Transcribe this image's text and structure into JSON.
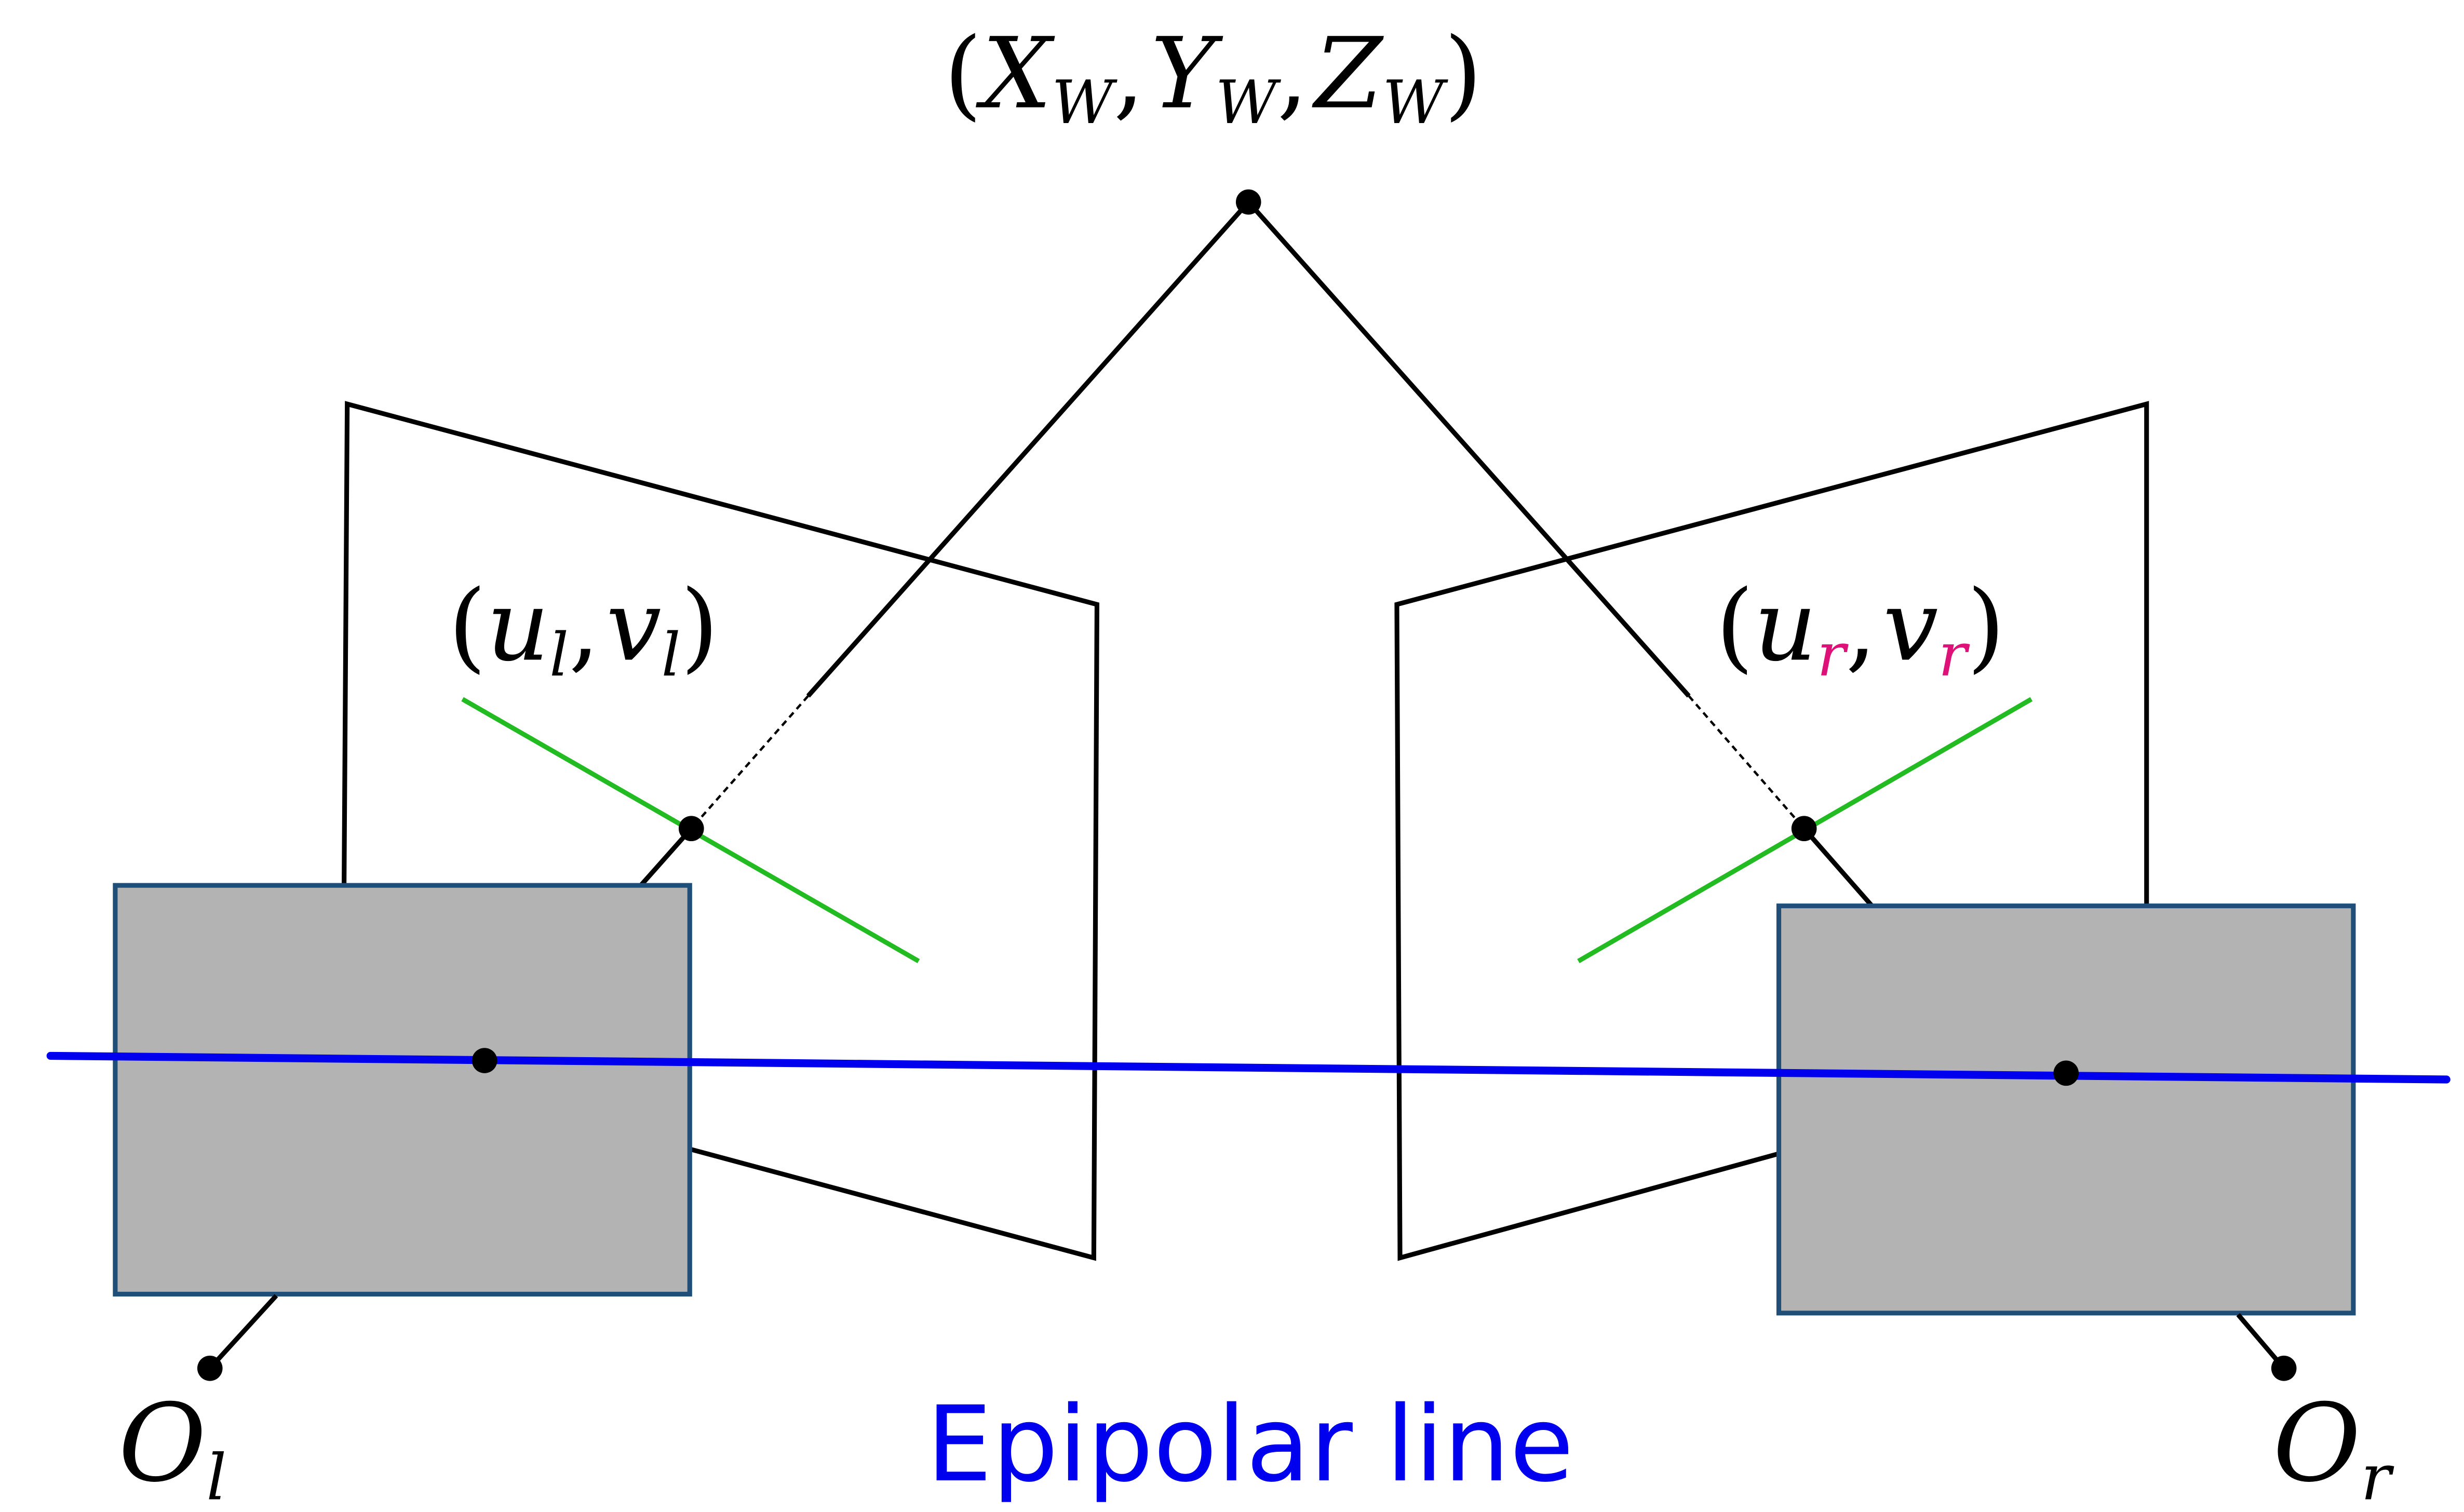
{
  "diagram": {
    "world_point": {
      "open": "(",
      "X": "X",
      "Y": "Y",
      "Z": "Z",
      "sub": "W",
      "comma": ",",
      "close": ")"
    },
    "left_point": {
      "open": "(",
      "u": "u",
      "v": "v",
      "sub": "l",
      "comma": ",",
      "close": ")"
    },
    "right_point": {
      "open": "(",
      "u": "u",
      "v": "v",
      "sub": "r",
      "comma": ",",
      "close": ")"
    },
    "left_center": {
      "letter": "O",
      "sub": "l"
    },
    "right_center": {
      "letter": "O",
      "sub": "r"
    },
    "epipolar_caption": "Epipolar line",
    "colors": {
      "line": "#000000",
      "epipolar": "#0000ee",
      "green_line": "#22bb22",
      "camera_fill": "#b3b3b3",
      "camera_border": "#1f4e79",
      "magenta": "#dd1177"
    }
  }
}
